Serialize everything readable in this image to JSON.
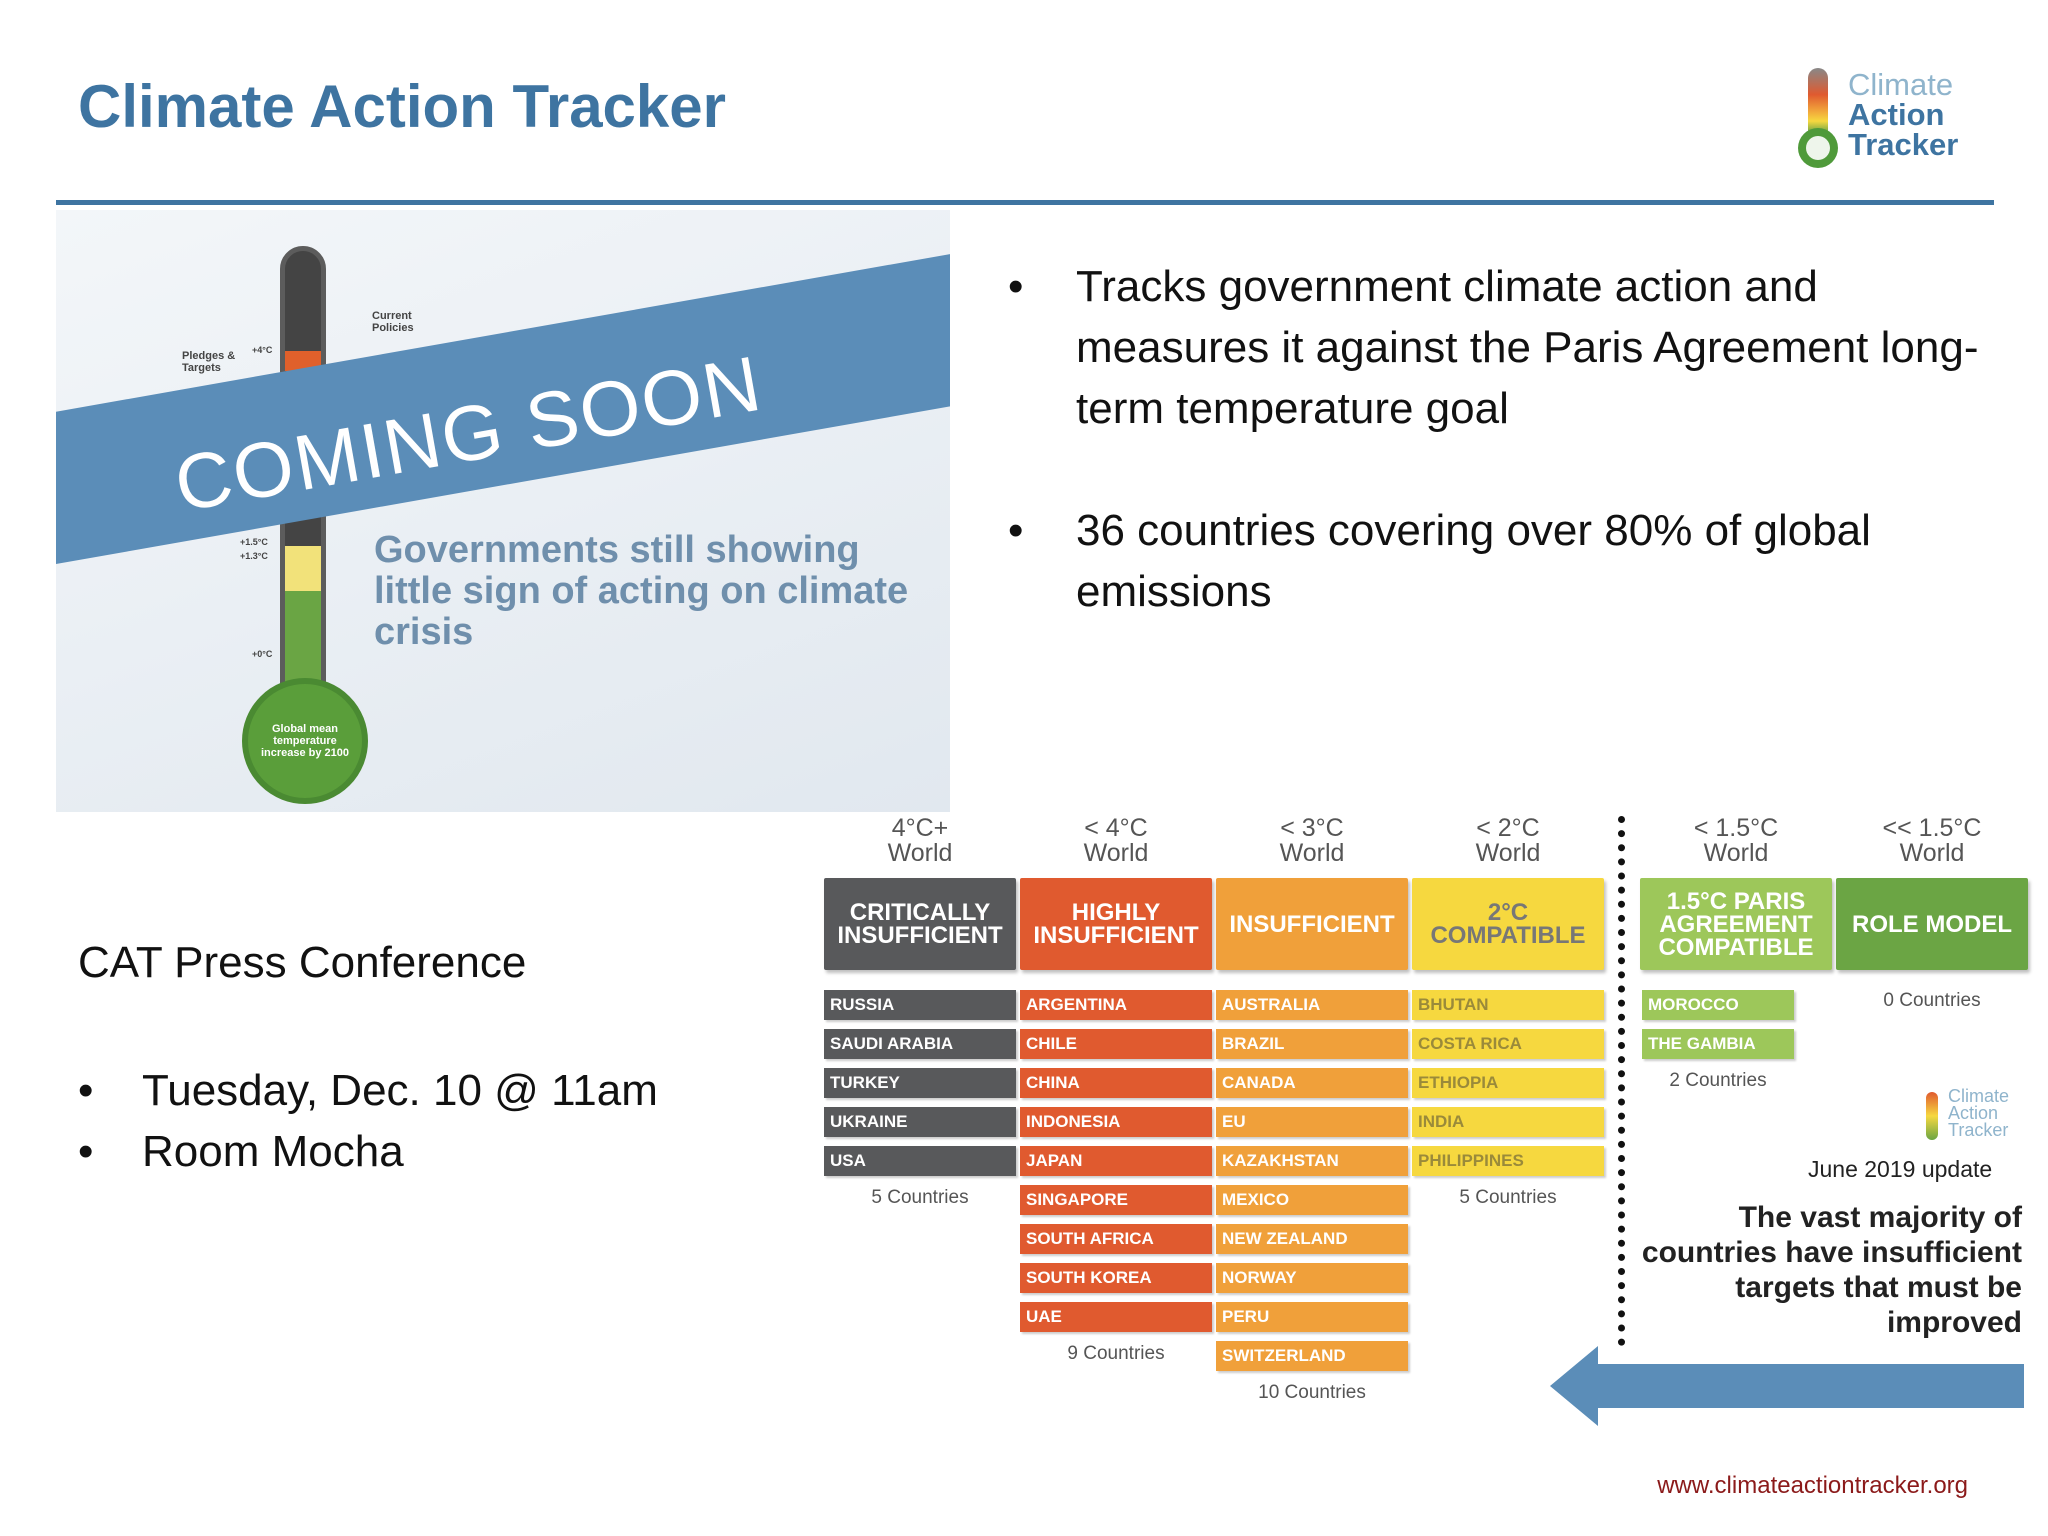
{
  "header": {
    "title": "Climate Action Tracker",
    "logo": {
      "line1": "Climate",
      "line2": "Action",
      "line3": "Tracker"
    }
  },
  "coming_soon_image": {
    "banner": "COMING SOON",
    "headline": "Governments still showing little sign of acting on climate crisis",
    "thermometer": {
      "current_policies": "Current Policies",
      "pledges": "Pledges & Targets",
      "bulb_text": "Global mean temperature increase by 2100",
      "tick_4": "+4°C",
      "tick_15a": "+1.5°C",
      "tick_13": "+1.3°C",
      "tick_0": "+0°C"
    }
  },
  "bullets": [
    "Tracks government climate action and measures it against the Paris Agreement long-term temperature goal",
    "36 countries covering over 80% of global emissions"
  ],
  "press": {
    "title": "CAT Press Conference",
    "items": [
      "Tuesday, Dec. 10 @ 11am",
      "Room Mocha"
    ]
  },
  "rating_chart": {
    "columns": [
      {
        "world_line1": "4°C+",
        "world_line2": "World",
        "category": "CRITICALLY INSUFFICIENT",
        "color": "#58595b",
        "countries": [
          "RUSSIA",
          "SAUDI ARABIA",
          "TURKEY",
          "UKRAINE",
          "USA"
        ],
        "count_label": "5 Countries"
      },
      {
        "world_line1": "< 4°C",
        "world_line2": "World",
        "category": "HIGHLY INSUFFICIENT",
        "color": "#e05a2f",
        "countries": [
          "ARGENTINA",
          "CHILE",
          "CHINA",
          "INDONESIA",
          "JAPAN",
          "SINGAPORE",
          "SOUTH AFRICA",
          "SOUTH KOREA",
          "UAE"
        ],
        "count_label": "9 Countries"
      },
      {
        "world_line1": "< 3°C",
        "world_line2": "World",
        "category": "INSUFFICIENT",
        "color": "#f0a03a",
        "countries": [
          "AUSTRALIA",
          "BRAZIL",
          "CANADA",
          "EU",
          "KAZAKHSTAN",
          "MEXICO",
          "NEW ZEALAND",
          "NORWAY",
          "PERU",
          "SWITZERLAND"
        ],
        "count_label": "10 Countries"
      },
      {
        "world_line1": "< 2°C",
        "world_line2": "World",
        "category": "2°C COMPATIBLE",
        "color": "#f6d83f",
        "countries": [
          "BHUTAN",
          "COSTA RICA",
          "ETHIOPIA",
          "INDIA",
          "PHILIPPINES"
        ],
        "count_label": "5 Countries"
      },
      {
        "world_line1": "< 1.5°C",
        "world_line2": "World",
        "category": "1.5°C PARIS AGREEMENT COMPATIBLE",
        "color": "#9dc75a",
        "countries": [
          "MOROCCO",
          "THE GAMBIA"
        ],
        "count_label": "2 Countries"
      },
      {
        "world_line1": "<< 1.5°C",
        "world_line2": "World",
        "category": "ROLE MODEL",
        "color": "#6ba544",
        "countries": [],
        "count_label": "0 Countries"
      }
    ],
    "mini_logo": {
      "line1": "Climate",
      "line2": "Action",
      "line3": "Tracker"
    },
    "update": "June 2019 update",
    "message": "The vast majority of countries have insufficient targets that must be improved"
  },
  "footer": {
    "url": "www.climateactiontracker.org"
  },
  "colors": {
    "title_blue": "#3e74a1",
    "banner_blue": "#5b8db8",
    "url_red": "#8b1a1a"
  }
}
